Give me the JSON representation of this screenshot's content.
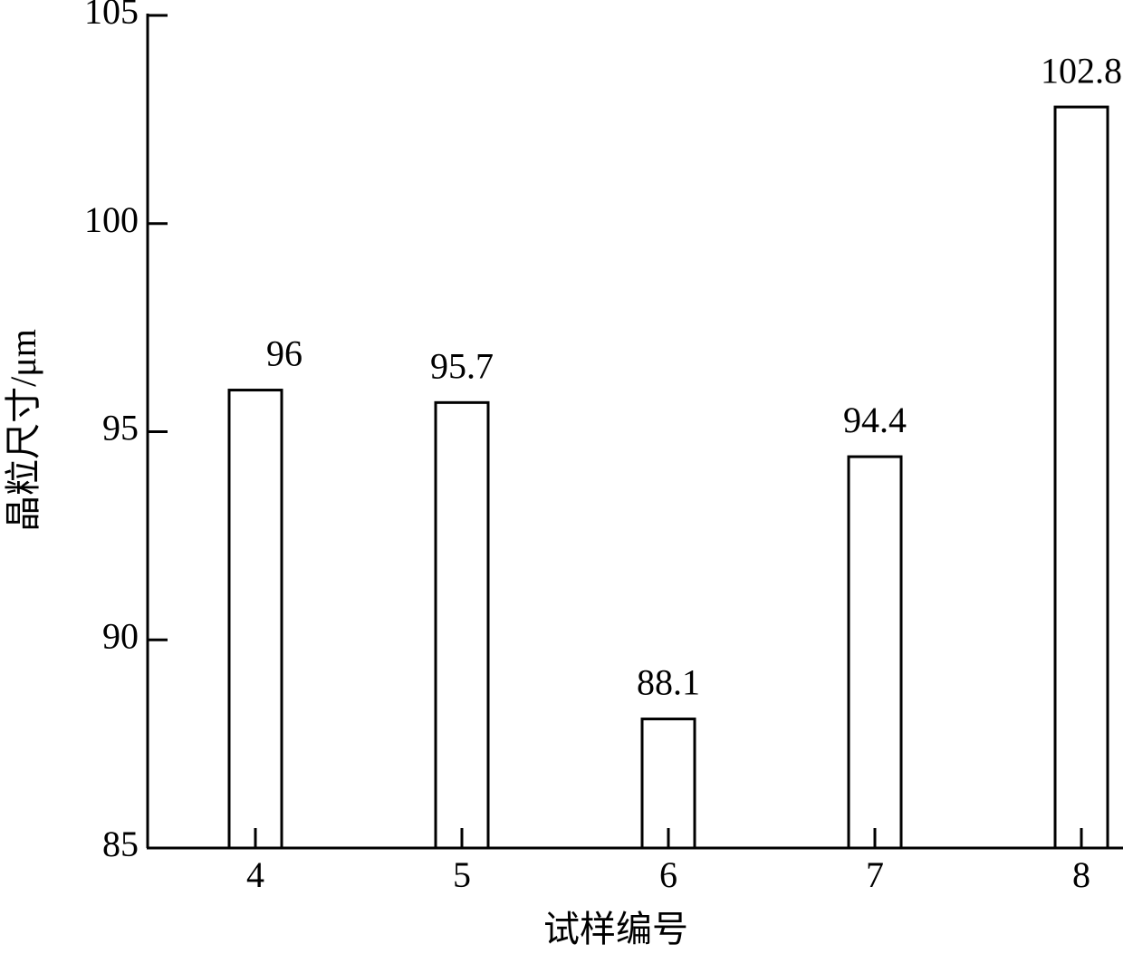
{
  "chart_data": {
    "type": "bar",
    "x_label": "试样编号",
    "y_label": "晶粒尺寸/μm",
    "categories": [
      "4",
      "5",
      "6",
      "7",
      "8"
    ],
    "values": [
      96,
      95.7,
      88.1,
      94.4,
      102.8
    ],
    "color": "#ffffff",
    "ylim": [
      85,
      105
    ],
    "yticks": [
      85,
      90,
      95,
      100,
      105
    ],
    "grid": false
  }
}
